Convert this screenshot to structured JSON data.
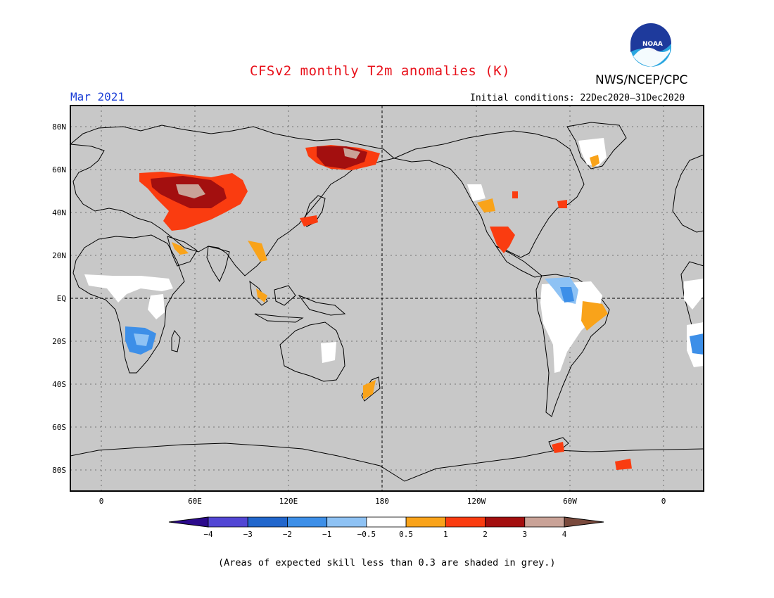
{
  "title": "CFSv2 monthly T2m anomalies (K)",
  "month": "Mar 2021",
  "initial_conditions": "Initial conditions: 22Dec2020–31Dec2020",
  "organization": "NWS/NCEP/CPC",
  "logo_text": "NOAA",
  "footer_note": "(Areas of expected skill less than 0.3 are shaded in grey.)",
  "latitude_labels": [
    "80N",
    "60N",
    "40N",
    "20N",
    "EQ",
    "20S",
    "40S",
    "60S",
    "80S"
  ],
  "longitude_labels": [
    "0",
    "60E",
    "120E",
    "180",
    "120W",
    "60W",
    "0"
  ],
  "colorbar": {
    "labels": [
      "−4",
      "−3",
      "−2",
      "−1",
      "−0.5",
      "0.5",
      "1",
      "2",
      "3",
      "4"
    ],
    "colors": [
      "#2b0a8c",
      "#5246d4",
      "#2166cc",
      "#3d8fe8",
      "#8ec2f4",
      "#ffffff",
      "#f9a31a",
      "#fa3c10",
      "#a30f0f",
      "#c9a297",
      "#7a4a3d"
    ]
  },
  "colors": {
    "land_grey": "#c8c8c8",
    "title_red": "#e8101a",
    "month_blue": "#1c3fd6"
  }
}
